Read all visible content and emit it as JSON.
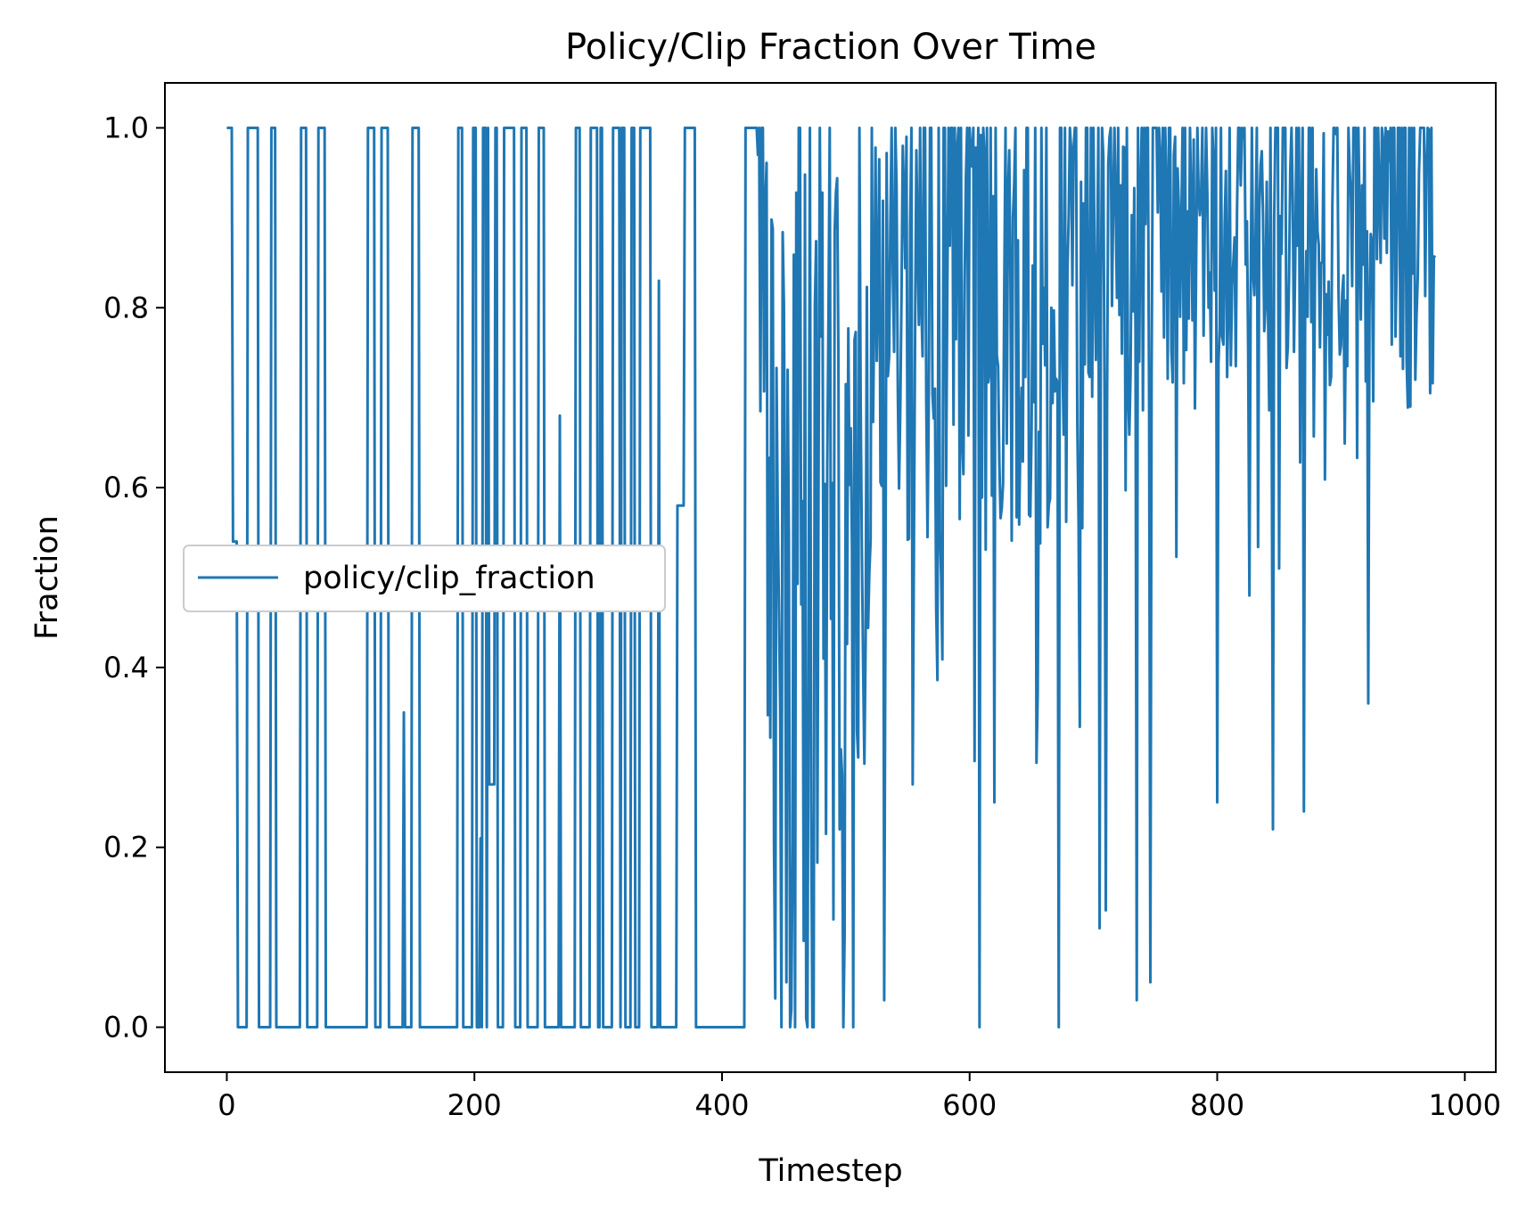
{
  "chart_data": {
    "type": "line",
    "title": "Policy/Clip Fraction Over Time",
    "xlabel": "Timestep",
    "ylabel": "Fraction",
    "xlim": [
      -50,
      1025
    ],
    "ylim": [
      -0.05,
      1.05
    ],
    "x_ticks": [
      0,
      200,
      400,
      600,
      800,
      1000
    ],
    "x_tick_labels": [
      "0",
      "200",
      "400",
      "600",
      "800",
      "1000"
    ],
    "y_ticks": [
      0.0,
      0.2,
      0.4,
      0.6,
      0.8,
      1.0
    ],
    "y_tick_labels": [
      "0.0",
      "0.2",
      "0.4",
      "0.6",
      "0.8",
      "1.0"
    ],
    "grid": false,
    "legend": {
      "placement": "center-left"
    },
    "series": [
      {
        "name": "policy/clip_fraction",
        "color": "#1f77b4",
        "x_start": 0,
        "x_step": 1,
        "generator": {
          "seed": 12345,
          "length": 977,
          "segments": [
            {
              "x_from": 0,
              "x_to": 5,
              "mode": "constant",
              "value": 1.0
            },
            {
              "x_from": 5,
              "x_to": 430,
              "mode": "binary_switching",
              "p_one": 0.35,
              "mean_run": 3,
              "p_mid": 0.08
            },
            {
              "x_from": 430,
              "x_to": 520,
              "mode": "noisy",
              "mean": 0.62,
              "spread": 0.45
            },
            {
              "x_from": 520,
              "x_to": 700,
              "mode": "noisy",
              "mean": 0.83,
              "spread": 0.3
            },
            {
              "x_from": 700,
              "x_to": 977,
              "mode": "noisy",
              "mean": 0.9,
              "spread": 0.22
            }
          ],
          "highlights": [
            {
              "x": 448,
              "y": 0.0
            },
            {
              "x": 452,
              "y": 0.05
            },
            {
              "x": 456,
              "y": 0.02
            },
            {
              "x": 468,
              "y": 0.01
            },
            {
              "x": 474,
              "y": 0.0
            },
            {
              "x": 490,
              "y": 0.12
            },
            {
              "x": 498,
              "y": 0.0
            },
            {
              "x": 506,
              "y": 0.0
            },
            {
              "x": 531,
              "y": 0.03
            },
            {
              "x": 554,
              "y": 0.27
            },
            {
              "x": 608,
              "y": 0.0
            },
            {
              "x": 620,
              "y": 0.25
            },
            {
              "x": 672,
              "y": 0.0
            },
            {
              "x": 705,
              "y": 0.11
            },
            {
              "x": 710,
              "y": 0.13
            },
            {
              "x": 735,
              "y": 0.03
            },
            {
              "x": 746,
              "y": 0.05
            },
            {
              "x": 800,
              "y": 0.25
            },
            {
              "x": 845,
              "y": 0.22
            },
            {
              "x": 870,
              "y": 0.24
            },
            {
              "x": 922,
              "y": 0.36
            },
            {
              "x": 960,
              "y": 0.72
            }
          ]
        }
      }
    ]
  }
}
